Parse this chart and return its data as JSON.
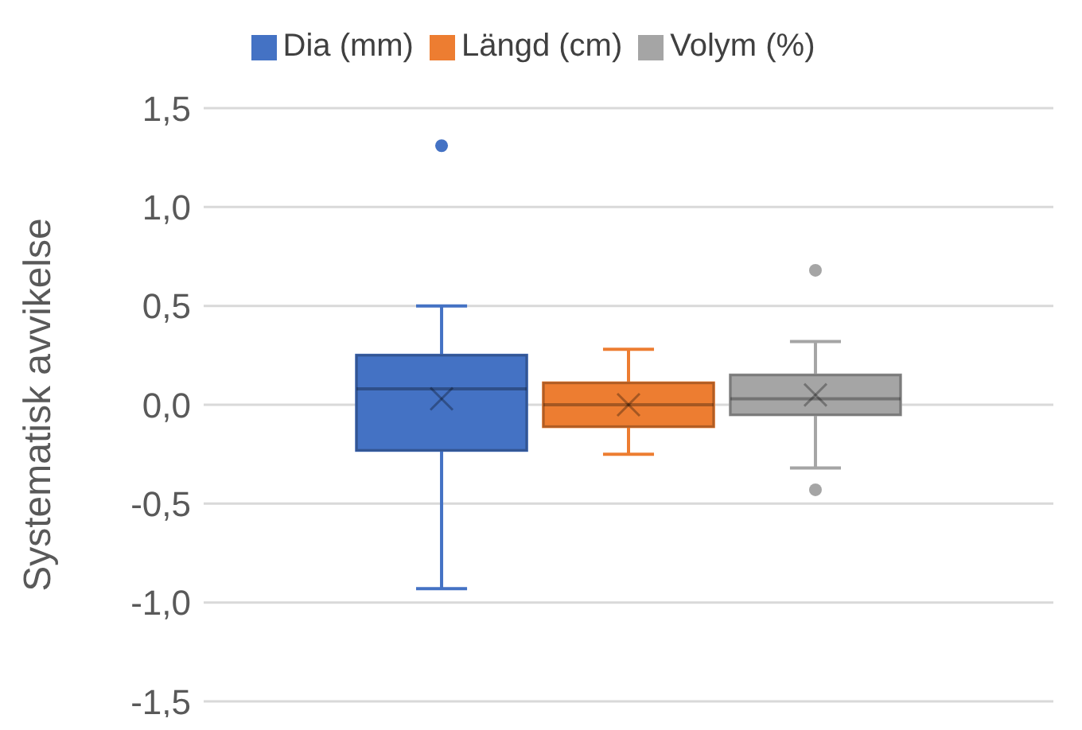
{
  "chart_data": {
    "type": "box",
    "ylabel": "Systematisk avvikelse",
    "categories": [
      null
    ],
    "series": [
      {
        "name": "Dia (mm)",
        "color": "#4472c4",
        "boxes": [
          {
            "low": -0.93,
            "q1": -0.23,
            "median": 0.08,
            "q3": 0.25,
            "high": 0.5,
            "mean": 0.03,
            "outliers": [
              1.31
            ]
          }
        ]
      },
      {
        "name": "Längd (cm)",
        "color": "#ed7d31",
        "boxes": [
          {
            "low": -0.25,
            "q1": -0.11,
            "median": 0.0,
            "q3": 0.11,
            "high": 0.28,
            "mean": 0.0
          }
        ]
      },
      {
        "name": "Volym (%)",
        "color": "#a5a5a5",
        "boxes": [
          {
            "low": -0.32,
            "q1": -0.05,
            "median": 0.03,
            "q3": 0.15,
            "high": 0.32,
            "mean": 0.05,
            "outliers": [
              0.68,
              -0.43
            ]
          }
        ]
      }
    ],
    "ylim": [
      -1.5,
      1.5
    ],
    "yticks": [
      {
        "value": -1.5,
        "label": "-1,5"
      },
      {
        "value": -1.0,
        "label": "-1,0"
      },
      {
        "value": -0.5,
        "label": "-0,5"
      },
      {
        "value": 0,
        "label": "0,0"
      },
      {
        "value": 0.5,
        "label": "0,5"
      },
      {
        "value": 1.0,
        "label": "1,0"
      },
      {
        "value": 1.5,
        "label": "1,5"
      }
    ],
    "grid": "y",
    "legend": "top"
  }
}
